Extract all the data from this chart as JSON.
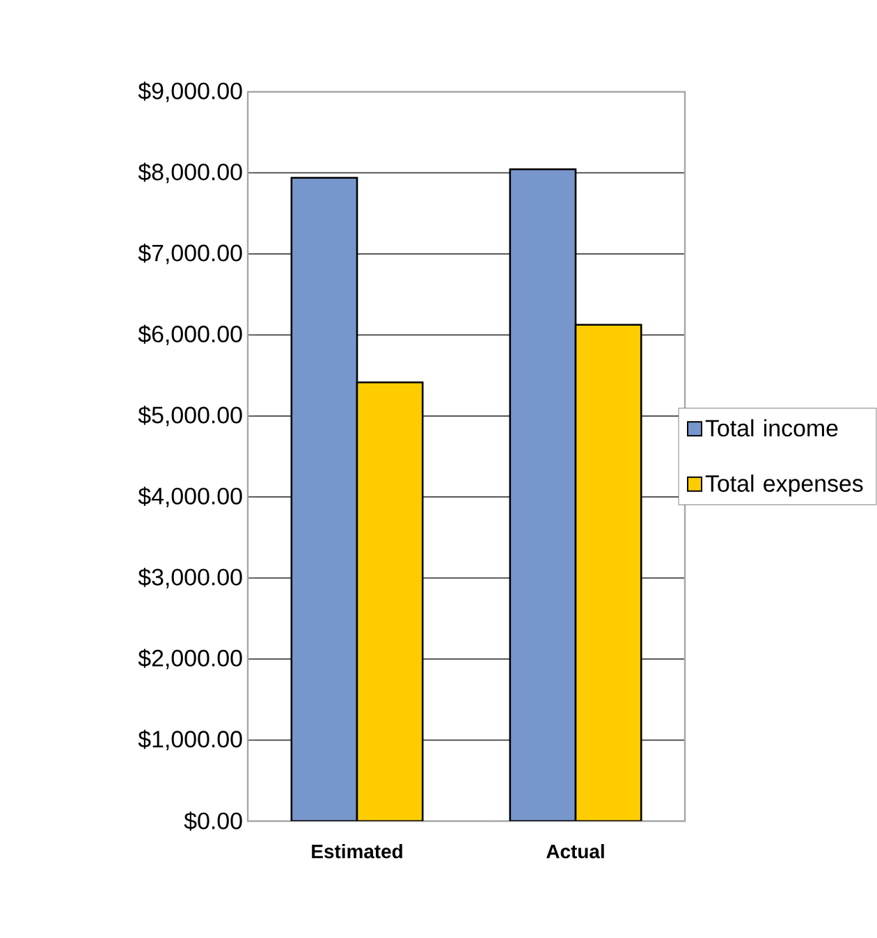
{
  "chart_data": {
    "type": "bar",
    "categories": [
      "Estimated",
      "Actual"
    ],
    "series": [
      {
        "name": "Total income",
        "color": "#7796cc",
        "values": [
          7940,
          8045
        ]
      },
      {
        "name": "Total expenses",
        "color": "#ffcc00",
        "values": [
          5415,
          6125
        ]
      }
    ],
    "ylim": [
      0,
      9000
    ],
    "yticks": [
      {
        "value": 0,
        "label": "$0.00"
      },
      {
        "value": 1000,
        "label": "$1,000.00"
      },
      {
        "value": 2000,
        "label": "$2,000.00"
      },
      {
        "value": 3000,
        "label": "$3,000.00"
      },
      {
        "value": 4000,
        "label": "$4,000.00"
      },
      {
        "value": 5000,
        "label": "$5,000.00"
      },
      {
        "value": 6000,
        "label": "$6,000.00"
      },
      {
        "value": 7000,
        "label": "$7,000.00"
      },
      {
        "value": 8000,
        "label": "$8,000.00"
      },
      {
        "value": 9000,
        "label": "$9,000.00"
      }
    ],
    "grid": "y",
    "legend": "right"
  }
}
